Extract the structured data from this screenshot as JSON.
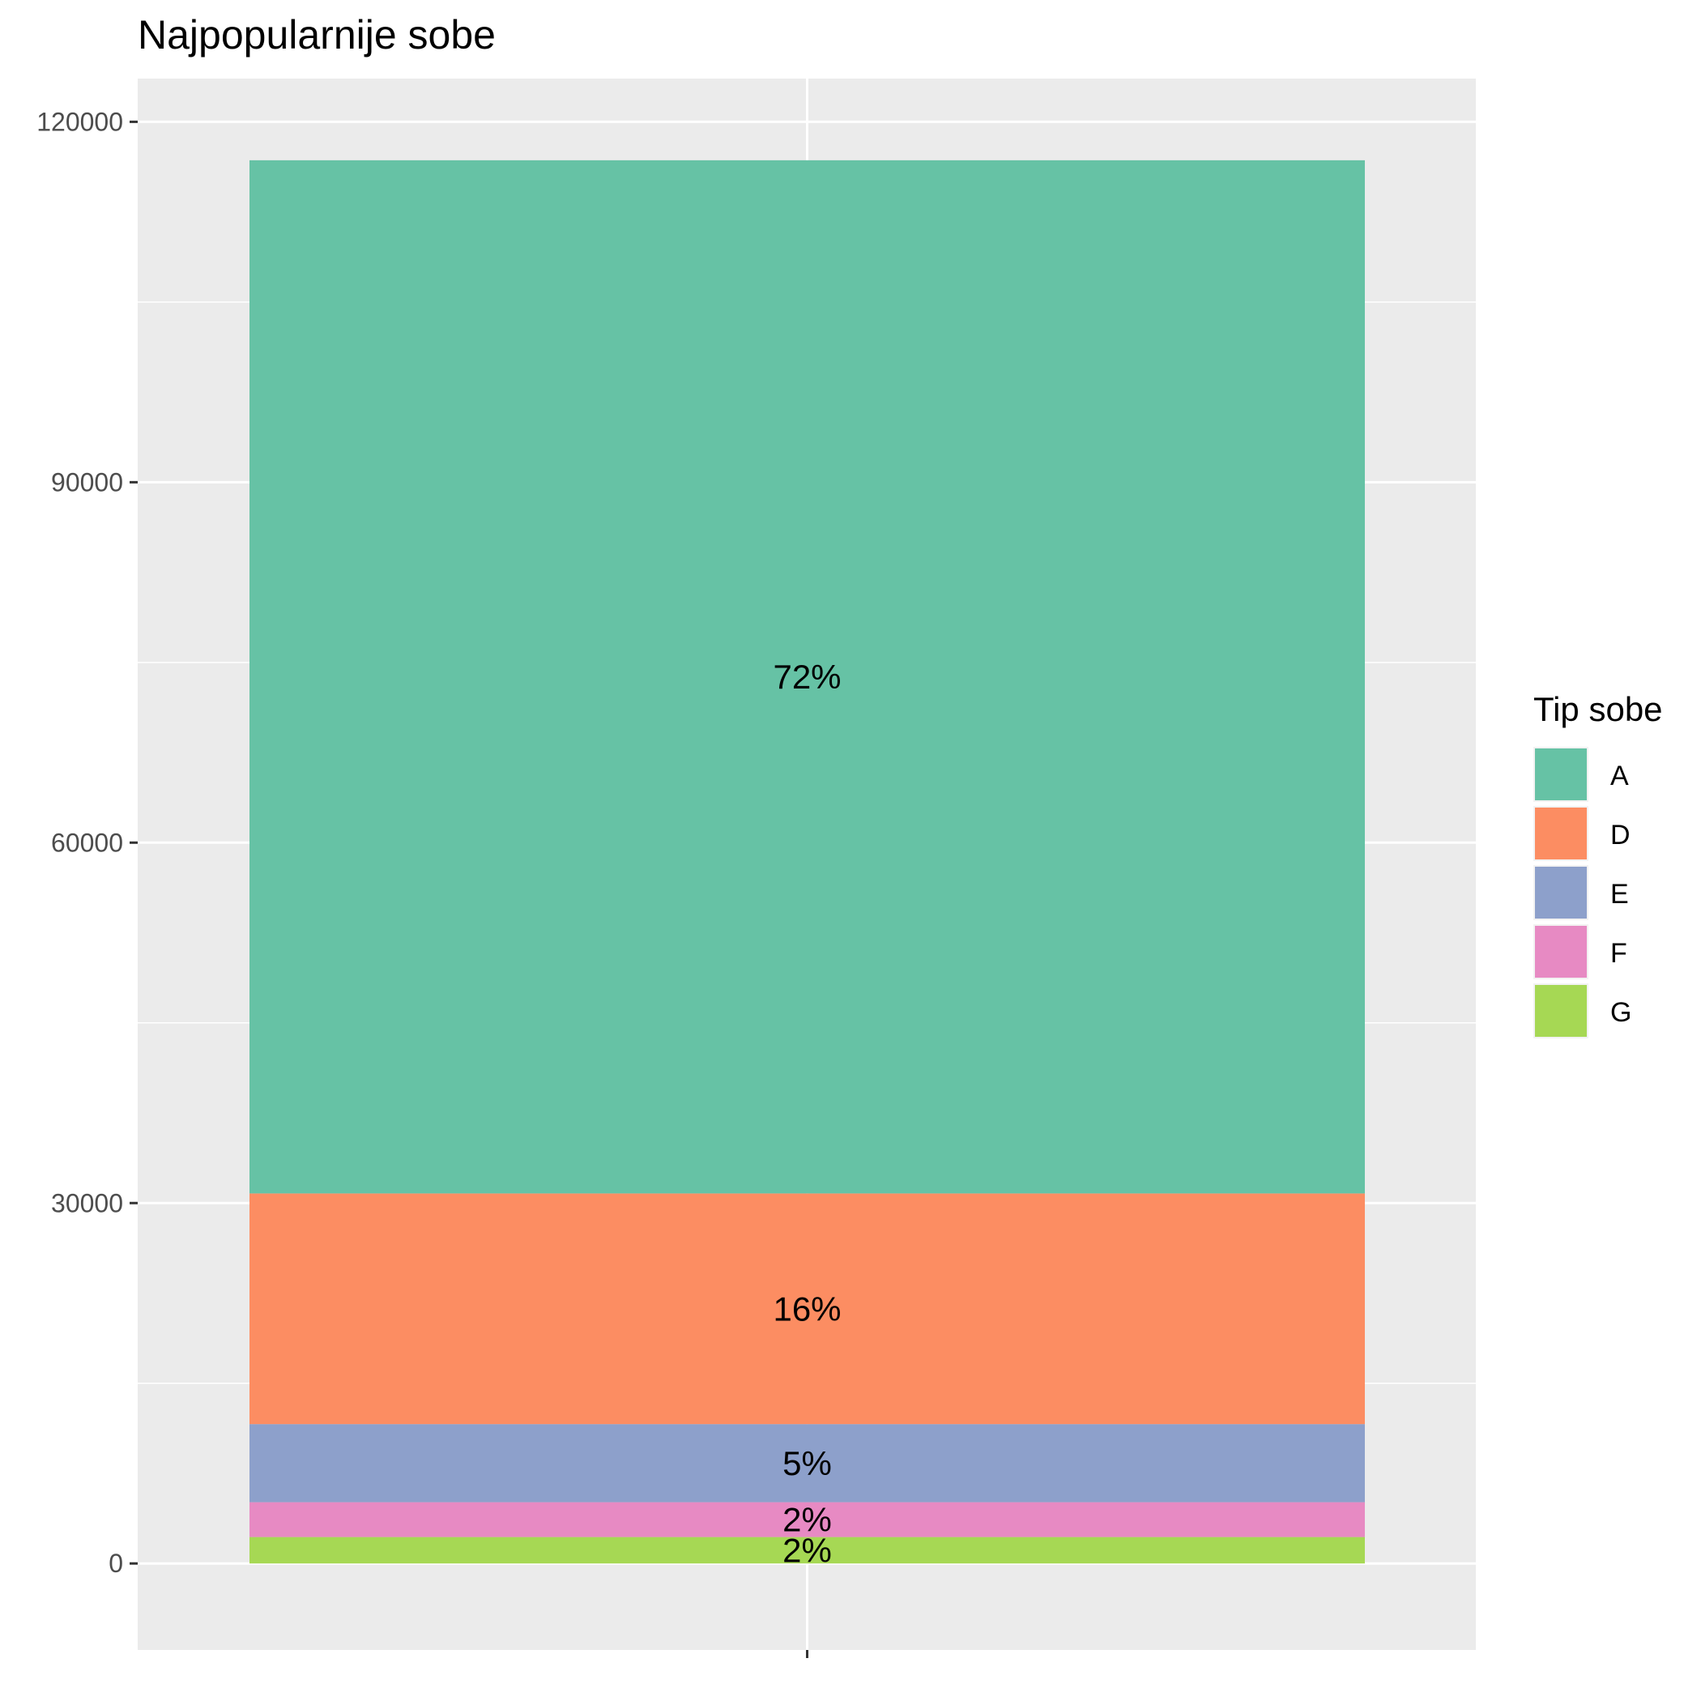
{
  "chart_data": {
    "type": "bar",
    "stacked": true,
    "title": "Najpopularnije sobe",
    "xlabel": "",
    "ylabel": "",
    "categories": [
      ""
    ],
    "ylim": [
      -7200,
      123600
    ],
    "yticks": [
      0,
      30000,
      60000,
      90000,
      120000
    ],
    "ytick_labels": [
      "0",
      "30000",
      "60000",
      "90000",
      "120000"
    ],
    "grid": true,
    "legend": {
      "title": "Tip sobe",
      "position": "right"
    },
    "series": [
      {
        "name": "A",
        "value": 86000,
        "label": "72%",
        "color": "#66c2a5"
      },
      {
        "name": "D",
        "value": 19200,
        "label": "16%",
        "color": "#fc8d62"
      },
      {
        "name": "E",
        "value": 6500,
        "label": "5%",
        "color": "#8da0cb"
      },
      {
        "name": "F",
        "value": 2900,
        "label": "2%",
        "color": "#e78ac3"
      },
      {
        "name": "G",
        "value": 2200,
        "label": "2%",
        "color": "#a6d854"
      }
    ]
  }
}
